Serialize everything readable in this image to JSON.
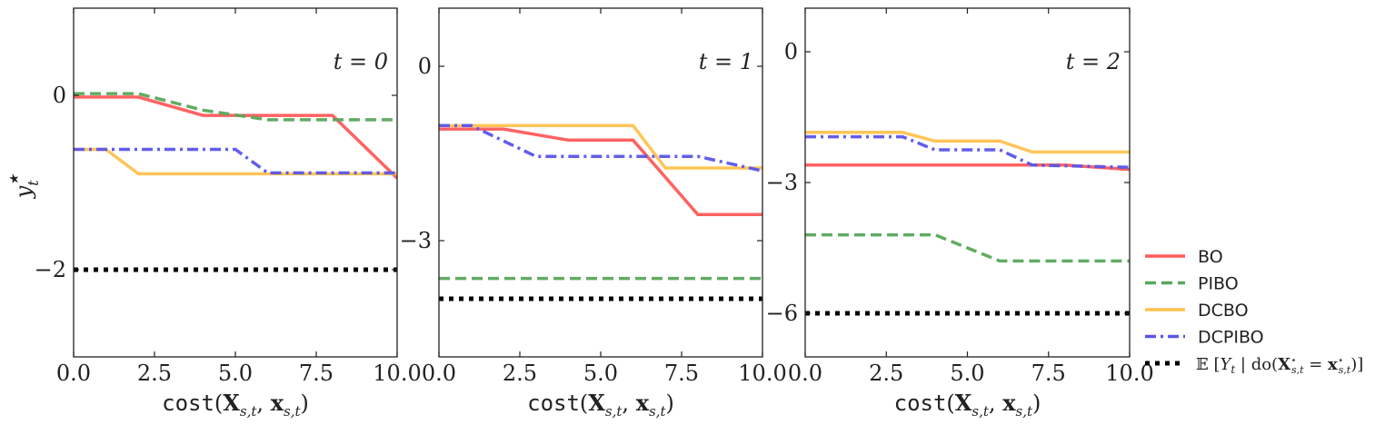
{
  "chart_data": {
    "type": "line",
    "xlabel": "cost(X_{s,t}, x_{s,t})",
    "ylabel": "y*_t",
    "legend": {
      "placement": "right",
      "entries": [
        {
          "name": "BO",
          "color": "#ff5a5a",
          "style": "solid"
        },
        {
          "name": "PIBO",
          "color": "#59a85a",
          "style": "dashed"
        },
        {
          "name": "DCBO",
          "color": "#ffc24f",
          "style": "solid"
        },
        {
          "name": "DCPIBO",
          "color": "#5a55ea",
          "style": "dashdot"
        },
        {
          "name": "E[Y_t | do(X*_{s,t} = x*_{s,t})]",
          "color": "#000000",
          "style": "dotted"
        }
      ]
    },
    "panels": [
      {
        "title": "t = 0",
        "xlim": [
          0,
          10
        ],
        "ylim": [
          -3,
          1
        ],
        "xticks": [
          0,
          2.5,
          5,
          7.5,
          10
        ],
        "xtick_labels": [
          "0.0",
          "2.5",
          "5.0",
          "7.5",
          "10.0"
        ],
        "yticks": [
          0,
          -2
        ],
        "ytick_labels": [
          "0",
          "−2"
        ],
        "series": [
          {
            "name": "BO",
            "x": [
              0,
              2,
              4,
              8,
              10
            ],
            "y": [
              -0.02,
              -0.02,
              -0.23,
              -0.23,
              -0.95
            ]
          },
          {
            "name": "PIBO",
            "x": [
              0,
              2,
              4,
              6,
              10
            ],
            "y": [
              0.02,
              0.02,
              -0.17,
              -0.28,
              -0.28
            ]
          },
          {
            "name": "DCBO",
            "x": [
              0,
              1,
              2,
              10
            ],
            "y": [
              -0.62,
              -0.62,
              -0.9,
              -0.9
            ]
          },
          {
            "name": "DCPIBO",
            "x": [
              0,
              5,
              6,
              10
            ],
            "y": [
              -0.62,
              -0.62,
              -0.89,
              -0.89
            ]
          },
          {
            "name": "E[Y_t | do(X*_{s,t} = x*_{s,t})]",
            "x": [
              0,
              10
            ],
            "y": [
              -2,
              -2
            ]
          }
        ]
      },
      {
        "title": "t = 1",
        "xlim": [
          0,
          10
        ],
        "ylim": [
          -5,
          1
        ],
        "xticks": [
          0,
          2.5,
          5,
          7.5,
          10
        ],
        "xtick_labels": [
          "0.0",
          "2.5",
          "5.0",
          "7.5",
          "10.0"
        ],
        "yticks": [
          0,
          -3
        ],
        "ytick_labels": [
          "0",
          "−3"
        ],
        "series": [
          {
            "name": "BO",
            "x": [
              0,
              2,
              4,
              6,
              8,
              10
            ],
            "y": [
              -1.08,
              -1.08,
              -1.27,
              -1.27,
              -2.55,
              -2.55
            ]
          },
          {
            "name": "PIBO",
            "x": [
              0,
              10
            ],
            "y": [
              -3.65,
              -3.65
            ]
          },
          {
            "name": "DCBO",
            "x": [
              0,
              6,
              7,
              10
            ],
            "y": [
              -1.02,
              -1.02,
              -1.75,
              -1.75
            ]
          },
          {
            "name": "DCPIBO",
            "x": [
              0,
              1,
              3,
              8,
              10
            ],
            "y": [
              -1.02,
              -1.02,
              -1.55,
              -1.55,
              -1.8
            ]
          },
          {
            "name": "E[Y_t | do(X*_{s,t} = x*_{s,t})]",
            "x": [
              0,
              10
            ],
            "y": [
              -4.0,
              -4.0
            ]
          }
        ]
      },
      {
        "title": "t = 2",
        "xlim": [
          0,
          10
        ],
        "ylim": [
          -7,
          1
        ],
        "xticks": [
          0,
          2.5,
          5,
          7.5,
          10
        ],
        "xtick_labels": [
          "0.0",
          "2.5",
          "5.0",
          "7.5",
          "10.0"
        ],
        "yticks": [
          0,
          -3,
          -6
        ],
        "ytick_labels": [
          "0",
          "−3",
          "−6"
        ],
        "series": [
          {
            "name": "BO",
            "x": [
              0,
              8,
              10
            ],
            "y": [
              -2.6,
              -2.6,
              -2.7
            ]
          },
          {
            "name": "PIBO",
            "x": [
              0,
              4,
              6,
              10
            ],
            "y": [
              -4.2,
              -4.2,
              -4.8,
              -4.8
            ]
          },
          {
            "name": "DCBO",
            "x": [
              0,
              3,
              4,
              6,
              7,
              10
            ],
            "y": [
              -1.85,
              -1.85,
              -2.05,
              -2.05,
              -2.3,
              -2.3
            ]
          },
          {
            "name": "DCPIBO",
            "x": [
              0,
              3,
              4,
              6,
              7,
              10
            ],
            "y": [
              -1.95,
              -1.95,
              -2.25,
              -2.25,
              -2.6,
              -2.65
            ]
          },
          {
            "name": "E[Y_t | do(X*_{s,t} = x*_{s,t})]",
            "x": [
              0,
              10
            ],
            "y": [
              -6.0,
              -6.0
            ]
          }
        ]
      }
    ]
  }
}
